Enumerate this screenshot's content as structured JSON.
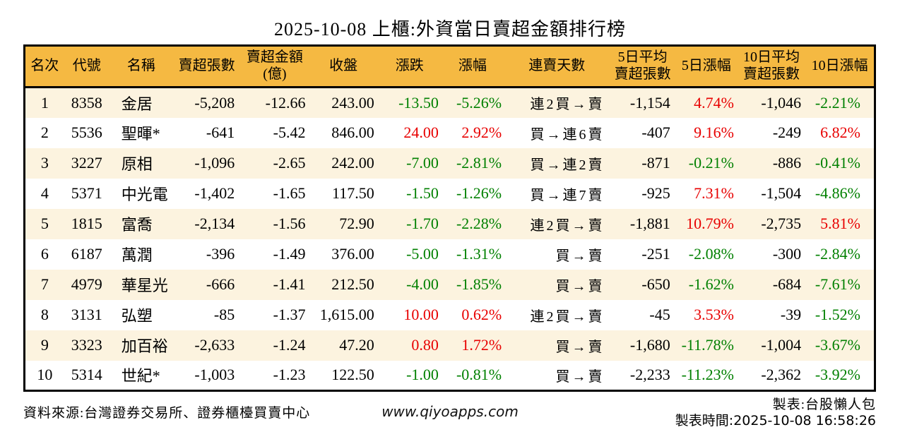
{
  "title": "2025-10-08 上櫃:外資當日賣超金額排行榜",
  "chart_data": {
    "type": "table",
    "title": "2025-10-08 上櫃:外資當日賣超金額排行榜",
    "columns": [
      "名次",
      "代號",
      "名稱",
      "賣超張數",
      "賣超金額\n(億)",
      "收盤",
      "漲跌",
      "漲幅",
      "連賣天數",
      "5日平均\n賣超張數",
      "5日漲幅",
      "10日平均\n賣超張數",
      "10日漲幅"
    ],
    "column_keys": [
      "rank",
      "code",
      "name",
      "sell_shares",
      "sell_amount_100m",
      "close",
      "change",
      "change_pct",
      "streak",
      "avg5_sell_shares",
      "pct5",
      "avg10_sell_shares",
      "pct10"
    ],
    "rows": [
      [
        "1",
        "8358",
        "金居",
        "-5,208",
        "-12.66",
        "243.00",
        "-13.50",
        "-5.26%",
        "連 2 買 → 賣",
        "-1,154",
        "4.74%",
        "-1,046",
        "-2.21%"
      ],
      [
        "2",
        "5536",
        "聖暉*",
        "-641",
        "-5.42",
        "846.00",
        "24.00",
        "2.92%",
        "買 → 連 6 賣",
        "-407",
        "9.16%",
        "-249",
        "6.82%"
      ],
      [
        "3",
        "3227",
        "原相",
        "-1,096",
        "-2.65",
        "242.00",
        "-7.00",
        "-2.81%",
        "買 → 連 2 賣",
        "-871",
        "-0.21%",
        "-886",
        "-0.41%"
      ],
      [
        "4",
        "5371",
        "中光電",
        "-1,402",
        "-1.65",
        "117.50",
        "-1.50",
        "-1.26%",
        "買 → 連 7 賣",
        "-925",
        "7.31%",
        "-1,504",
        "-4.86%"
      ],
      [
        "5",
        "1815",
        "富喬",
        "-2,134",
        "-1.56",
        "72.90",
        "-1.70",
        "-2.28%",
        "連 2 買 → 賣",
        "-1,881",
        "10.79%",
        "-2,735",
        "5.81%"
      ],
      [
        "6",
        "6187",
        "萬潤",
        "-396",
        "-1.49",
        "376.00",
        "-5.00",
        "-1.31%",
        "買 → 賣",
        "-251",
        "-2.08%",
        "-300",
        "-2.84%"
      ],
      [
        "7",
        "4979",
        "華星光",
        "-666",
        "-1.41",
        "212.50",
        "-4.00",
        "-1.85%",
        "買 → 賣",
        "-650",
        "-1.62%",
        "-684",
        "-7.61%"
      ],
      [
        "8",
        "3131",
        "弘塑",
        "-85",
        "-1.37",
        "1,615.00",
        "10.00",
        "0.62%",
        "連 2 買 → 賣",
        "-45",
        "3.53%",
        "-39",
        "-1.52%"
      ],
      [
        "9",
        "3323",
        "加百裕",
        "-2,633",
        "-1.24",
        "47.20",
        "0.80",
        "1.72%",
        "買 → 賣",
        "-1,680",
        "-11.78%",
        "-1,004",
        "-3.67%"
      ],
      [
        "10",
        "5314",
        "世紀*",
        "-1,003",
        "-1.23",
        "122.50",
        "-1.00",
        "-0.81%",
        "買 → 賣",
        "-2,233",
        "-11.23%",
        "-2,362",
        "-3.92%"
      ]
    ],
    "legend_note": "red = positive (up), green = negative (down)"
  },
  "footer": {
    "source": "資料來源:台灣證券交易所、證券櫃檯買賣中心",
    "site": "www.qiyoapps.com",
    "maker": "製表:台股懶人包",
    "made_time": "製表時間:2025-10-08 16:58:26"
  },
  "colors": {
    "header_bg": "#F5B942",
    "row_alt_bg": "#FCF3DF",
    "row_bg": "#FFFFFF",
    "up_red": "#E80000",
    "down_green": "#008000",
    "border": "#000000"
  }
}
